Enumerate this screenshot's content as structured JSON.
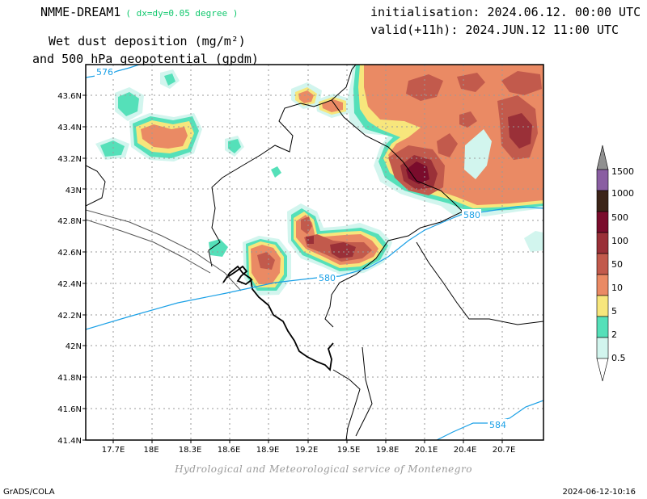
{
  "header": {
    "model": "NMME-DREAM1",
    "grid": "( dx=dy=0.05 degree )",
    "initialisation": "initialisation: 2024.06.12. 00:00 UTC",
    "valid": "valid(+11h): 2024.JUN.12 11:00 UTC",
    "variable_line1": "Wet dust deposition (mg/m²)",
    "variable_line2": "and 500 hPa geopotential (gpdm)"
  },
  "map": {
    "lat_labels": [
      "43.6N",
      "43.4N",
      "43.2N",
      "43N",
      "42.8N",
      "42.6N",
      "42.4N",
      "42.2N",
      "42N",
      "41.8N",
      "41.6N",
      "41.4N"
    ],
    "lon_labels": [
      "17.7E",
      "18E",
      "18.3E",
      "18.6E",
      "18.9E",
      "19.2E",
      "19.5E",
      "19.8E",
      "20.1E",
      "20.4E",
      "20.7E"
    ],
    "contour_labels": [
      "576",
      "580",
      "580",
      "584"
    ],
    "contour_color": "#1aa0e6"
  },
  "legend": {
    "levels": [
      "0.5",
      "2",
      "5",
      "10",
      "50",
      "100",
      "500",
      "1000",
      "1500"
    ],
    "colors": [
      "#d2f5ee",
      "#55e0b9",
      "#f7e67c",
      "#ea8a64",
      "#c25a4c",
      "#9a3038",
      "#7a0c2c",
      "#3c2418",
      "#8a5ea2"
    ],
    "top_cap_color": "#909090"
  },
  "footer": {
    "credit": "Hydrological and Meteorological service of Montenegro",
    "software": "GrADS/COLA",
    "timestamp": "2024-06-12-10:16"
  }
}
